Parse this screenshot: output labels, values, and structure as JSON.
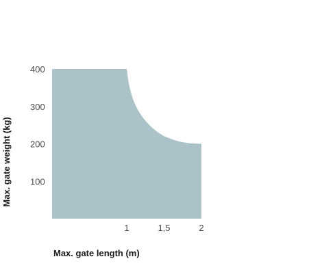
{
  "chart_data": {
    "type": "area",
    "xlabel": "Max. gate length (m)",
    "ylabel": "Max. gate weight (kg)",
    "xlim": [
      0,
      2
    ],
    "ylim": [
      0,
      400
    ],
    "x_ticks": [
      {
        "value": 1,
        "label": "1"
      },
      {
        "value": 1.5,
        "label": "1,5"
      },
      {
        "value": 2,
        "label": "2"
      }
    ],
    "y_ticks": [
      {
        "value": 100,
        "label": "100"
      },
      {
        "value": 200,
        "label": "200"
      },
      {
        "value": 300,
        "label": "300"
      },
      {
        "value": 400,
        "label": "400"
      }
    ],
    "series": [
      {
        "fill_color": "#abc2c9",
        "points": [
          {
            "x": 0,
            "y": 400
          },
          {
            "x": 1,
            "y": 400
          },
          {
            "x": 1.04,
            "y": 350
          },
          {
            "x": 1.12,
            "y": 302
          },
          {
            "x": 1.25,
            "y": 262
          },
          {
            "x": 1.41,
            "y": 232
          },
          {
            "x": 1.58,
            "y": 214
          },
          {
            "x": 1.79,
            "y": 203
          },
          {
            "x": 2,
            "y": 200
          },
          {
            "x": 2,
            "y": 0
          },
          {
            "x": 0,
            "y": 0
          }
        ]
      }
    ],
    "grid": false,
    "legend": "none"
  }
}
